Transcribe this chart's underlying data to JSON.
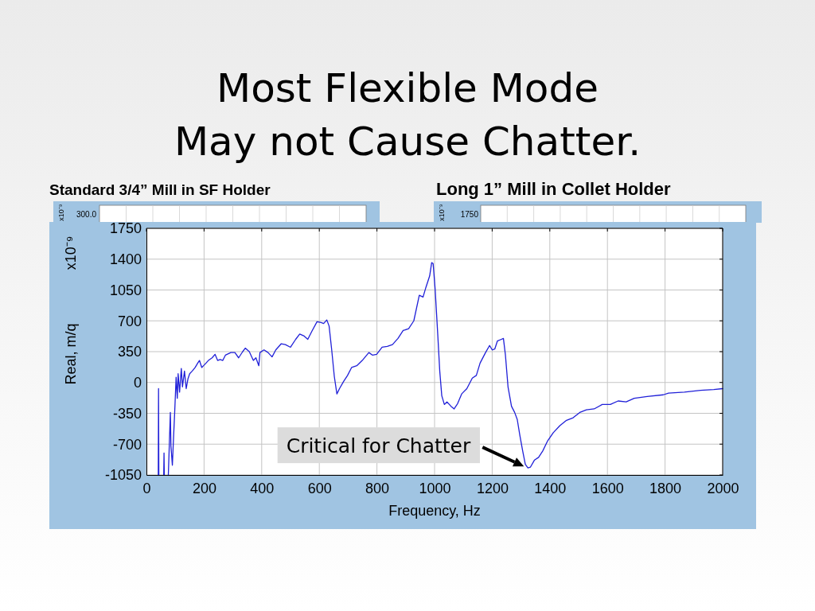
{
  "chart_data": {
    "type": "line",
    "title": "Most Flexible Mode\nMay not Cause Chatter.",
    "xlabel": "Frequency, Hz",
    "ylabel": "Real, m/q",
    "x": [
      41,
      42,
      43,
      50,
      60,
      61,
      62,
      70,
      76,
      83,
      85,
      90,
      94,
      98,
      103,
      107,
      110,
      115,
      121,
      125,
      132,
      138,
      144,
      150,
      159,
      169,
      178,
      184,
      192,
      201,
      215,
      228,
      238,
      247,
      256,
      265,
      274,
      293,
      307,
      320,
      334,
      343,
      357,
      371,
      380,
      390,
      394,
      408,
      422,
      436,
      449,
      468,
      482,
      500,
      518,
      532,
      546,
      560,
      574,
      592,
      606,
      615,
      626,
      634,
      643,
      652,
      661,
      670,
      684,
      698,
      712,
      730,
      749,
      772,
      785,
      799,
      818,
      836,
      854,
      873,
      891,
      910,
      928,
      947,
      960,
      970,
      983,
      990,
      995,
      1002,
      1011,
      1018,
      1025,
      1034,
      1043,
      1057,
      1068,
      1080,
      1094,
      1112,
      1131,
      1145,
      1158,
      1177,
      1191,
      1200,
      1209,
      1218,
      1232,
      1239,
      1246,
      1255,
      1267,
      1278,
      1287,
      1296,
      1306,
      1315,
      1324,
      1333,
      1347,
      1361,
      1375,
      1393,
      1412,
      1435,
      1458,
      1481,
      1504,
      1527,
      1554,
      1582,
      1610,
      1637,
      1665,
      1693,
      1738,
      1794,
      1812,
      1867,
      1923,
      1969,
      2000
    ],
    "series": [
      {
        "color": "#2020d8",
        "values": [
          -1050,
          -70,
          -1050,
          null,
          -1050,
          -800,
          -1050,
          null,
          -1050,
          -340,
          -720,
          -940,
          -630,
          -340,
          60,
          -180,
          100,
          -110,
          160,
          -50,
          130,
          -70,
          40,
          100,
          130,
          170,
          220,
          250,
          170,
          200,
          250,
          280,
          320,
          250,
          260,
          250,
          310,
          340,
          340,
          280,
          350,
          390,
          350,
          250,
          280,
          190,
          340,
          370,
          340,
          290,
          370,
          440,
          430,
          400,
          490,
          550,
          530,
          490,
          580,
          690,
          680,
          670,
          710,
          640,
          370,
          70,
          -130,
          -70,
          10,
          80,
          170,
          190,
          250,
          340,
          310,
          320,
          400,
          410,
          430,
          500,
          590,
          610,
          700,
          990,
          970,
          1080,
          1210,
          1360,
          1350,
          1060,
          550,
          130,
          -150,
          -250,
          -220,
          -270,
          -300,
          -240,
          -130,
          -70,
          50,
          80,
          220,
          340,
          420,
          370,
          380,
          470,
          490,
          500,
          310,
          -50,
          -270,
          -340,
          -420,
          -600,
          -780,
          -930,
          -970,
          -960,
          -880,
          -850,
          -780,
          -660,
          -570,
          -490,
          -430,
          -400,
          -340,
          -310,
          -300,
          -250,
          -250,
          -210,
          -220,
          -180,
          -160,
          -140,
          -120,
          -110,
          -90,
          -80,
          -70
        ]
      }
    ],
    "xlim": [
      0,
      2000
    ],
    "xticks": [
      0,
      200,
      400,
      600,
      800,
      1000,
      1200,
      1400,
      1600,
      1800,
      2000
    ],
    "ylim": [
      -1050,
      1750
    ],
    "yticks": [
      -1050,
      -700,
      -350,
      0,
      350,
      700,
      1050,
      1400,
      1750
    ],
    "grid": true,
    "annotations": [
      "Standard 3/4” Mill in SF Holder",
      "Long 1” Mill in Collet Holder",
      "x10⁻⁹",
      {
        "text": "Critical for Chatter",
        "x": 1324,
        "y": -970
      },
      "300.0",
      "1750",
      "x10⁻⁹",
      "x10⁻⁹"
    ]
  }
}
